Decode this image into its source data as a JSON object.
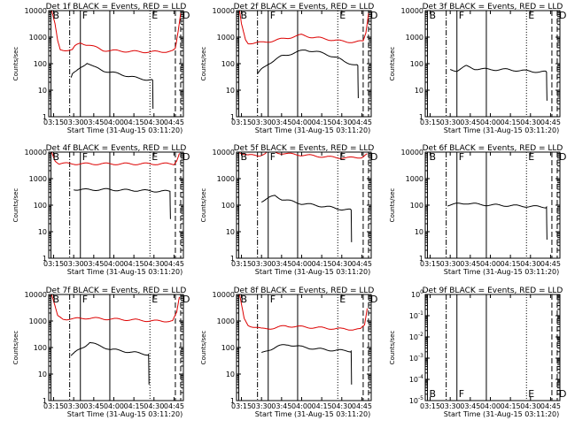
{
  "figure": {
    "xlabel": "Start Time (31-Aug-15 03:11:20)",
    "ylabel": "Counts/sec",
    "x_ticks": [
      "03:15",
      "03:30",
      "03:45",
      "04:00",
      "04:15",
      "04:30",
      "04:45"
    ],
    "x_tick_minutes": [
      195,
      210,
      225,
      240,
      255,
      270,
      285
    ],
    "xlim_minutes": [
      191.33,
      292
    ],
    "y_ticks_default": [
      "1",
      "10",
      "100",
      "1000",
      "10000"
    ],
    "y_ticks_panel9": [
      "10^0",
      "10^-1",
      "10^-2",
      "10^-3",
      "10^-4",
      "10^-5"
    ],
    "markers": [
      {
        "label": "B",
        "minute": 193,
        "style": "solid"
      },
      {
        "label": "",
        "minute": 207,
        "style": "dashdot"
      },
      {
        "label": "F",
        "minute": 215,
        "style": "solid"
      },
      {
        "label": "",
        "minute": 237,
        "style": "solid"
      },
      {
        "label": "E",
        "minute": 267,
        "style": "dotted"
      },
      {
        "label": "",
        "minute": 286,
        "style": "dashed"
      },
      {
        "label": "D",
        "minute": 290,
        "style": "dashed"
      }
    ]
  },
  "chart_data": [
    {
      "type": "line",
      "title": "Det 1f BLACK = Events, RED = LLD",
      "ylim": [
        1,
        10000
      ],
      "log": true,
      "grid": false,
      "series": [
        {
          "name": "Events",
          "color": "#000000",
          "points": [
            [
              208,
              30
            ],
            [
              209,
              40
            ],
            [
              212,
              50
            ],
            [
              215,
              70
            ],
            [
              220,
              110
            ],
            [
              225,
              75
            ],
            [
              232,
              55
            ],
            [
              240,
              45
            ],
            [
              250,
              35
            ],
            [
              258,
              28
            ],
            [
              266,
              25
            ],
            [
              269,
              24
            ],
            [
              269.3,
              2
            ]
          ]
        },
        {
          "name": "LLD",
          "color": "#dd0000",
          "points": [
            [
              193.5,
              10000
            ],
            [
              196,
              3000
            ],
            [
              198,
              700
            ],
            [
              200,
              330
            ],
            [
              207,
              330
            ],
            [
              209,
              330
            ],
            [
              211,
              450
            ],
            [
              215,
              600
            ],
            [
              222,
              500
            ],
            [
              232,
              320
            ],
            [
              245,
              300
            ],
            [
              260,
              280
            ],
            [
              275,
              280
            ],
            [
              284,
              300
            ],
            [
              286,
              350
            ],
            [
              288,
              1500
            ],
            [
              290,
              8000
            ]
          ]
        }
      ]
    },
    {
      "type": "line",
      "title": "Det 2f BLACK = Events, RED = LLD",
      "ylim": [
        1,
        10000
      ],
      "log": true,
      "grid": false,
      "series": [
        {
          "name": "Events",
          "color": "#000000",
          "points": [
            [
              207,
              40
            ],
            [
              210,
              60
            ],
            [
              215,
              100
            ],
            [
              225,
              190
            ],
            [
              235,
              260
            ],
            [
              243,
              330
            ],
            [
              250,
              290
            ],
            [
              258,
              230
            ],
            [
              266,
              170
            ],
            [
              272,
              120
            ],
            [
              280,
              90
            ],
            [
              282,
              85
            ],
            [
              282.3,
              5
            ]
          ]
        },
        {
          "name": "LLD",
          "color": "#dd0000",
          "points": [
            [
              193.5,
              10000
            ],
            [
              195,
              3000
            ],
            [
              198,
              800
            ],
            [
              200,
              600
            ],
            [
              210,
              620
            ],
            [
              220,
              750
            ],
            [
              230,
              950
            ],
            [
              240,
              1200
            ],
            [
              248,
              1000
            ],
            [
              255,
              900
            ],
            [
              262,
              800
            ],
            [
              270,
              700
            ],
            [
              280,
              650
            ],
            [
              286,
              700
            ],
            [
              288,
              1500
            ],
            [
              290,
              8000
            ]
          ]
        }
      ]
    },
    {
      "type": "line",
      "title": "Det 3f BLACK = Events, RED = LLD",
      "ylim": [
        1,
        10000
      ],
      "log": true,
      "grid": false,
      "series": [
        {
          "name": "Events",
          "color": "#000000",
          "points": [
            [
              210,
              60
            ],
            [
              215,
              55
            ],
            [
              222,
              80
            ],
            [
              228,
              65
            ],
            [
              240,
              60
            ],
            [
              252,
              60
            ],
            [
              262,
              55
            ],
            [
              275,
              50
            ],
            [
              282,
              48
            ],
            [
              282.3,
              4
            ]
          ]
        }
      ]
    },
    {
      "type": "line",
      "title": "Det 4f BLACK = Events, RED = LLD",
      "ylim": [
        1,
        10000
      ],
      "log": true,
      "grid": false,
      "series": [
        {
          "name": "Events",
          "color": "#000000",
          "points": [
            [
              210,
              400
            ],
            [
              220,
              380
            ],
            [
              235,
              390
            ],
            [
              245,
              370
            ],
            [
              260,
              360
            ],
            [
              270,
              340
            ],
            [
              282,
              330
            ],
            [
              282.3,
              30
            ]
          ]
        },
        {
          "name": "LLD",
          "color": "#dd0000",
          "points": [
            [
              193.5,
              10000
            ],
            [
              196,
              5000
            ],
            [
              199,
              3700
            ],
            [
              220,
              3600
            ],
            [
              250,
              3600
            ],
            [
              275,
              3600
            ],
            [
              285,
              3600
            ],
            [
              287,
              5000
            ],
            [
              289,
              9000
            ]
          ]
        }
      ]
    },
    {
      "type": "line",
      "title": "Det 5f BLACK = Events, RED = LLD",
      "ylim": [
        1,
        10000
      ],
      "log": true,
      "grid": false,
      "series": [
        {
          "name": "Events",
          "color": "#000000",
          "points": [
            [
              210,
              140
            ],
            [
              215,
              180
            ],
            [
              220,
              230
            ],
            [
              225,
              170
            ],
            [
              232,
              140
            ],
            [
              240,
              115
            ],
            [
              250,
              100
            ],
            [
              260,
              85
            ],
            [
              270,
              70
            ],
            [
              277,
              65
            ],
            [
              277.3,
              4
            ]
          ]
        },
        {
          "name": "LLD",
          "color": "#dd0000",
          "points": [
            [
              193.5,
              10000
            ],
            [
              197,
              8500
            ],
            [
              200,
              7500
            ],
            [
              208,
              7500
            ],
            [
              213,
              9000
            ],
            [
              215,
              11000
            ],
            [
              222,
              9500
            ],
            [
              230,
              8500
            ],
            [
              245,
              7500
            ],
            [
              260,
              6500
            ],
            [
              275,
              6000
            ],
            [
              285,
              6500
            ],
            [
              289,
              8500
            ]
          ]
        }
      ]
    },
    {
      "type": "line",
      "title": "Det 6f BLACK = Events, RED = LLD",
      "ylim": [
        1,
        10000
      ],
      "log": true,
      "grid": false,
      "series": [
        {
          "name": "Events",
          "color": "#000000",
          "points": [
            [
              208,
              100
            ],
            [
              215,
              110
            ],
            [
              222,
              120
            ],
            [
              232,
              105
            ],
            [
              245,
              100
            ],
            [
              258,
              95
            ],
            [
              270,
              90
            ],
            [
              282,
              85
            ],
            [
              282.3,
              5
            ]
          ]
        }
      ]
    },
    {
      "type": "line",
      "title": "Det 7f BLACK = Events, RED = LLD",
      "ylim": [
        1,
        10000
      ],
      "log": true,
      "grid": false,
      "series": [
        {
          "name": "Events",
          "color": "#000000",
          "points": [
            [
              208,
              50
            ],
            [
              212,
              70
            ],
            [
              218,
              110
            ],
            [
              222,
              160
            ],
            [
              228,
              120
            ],
            [
              238,
              85
            ],
            [
              250,
              70
            ],
            [
              260,
              60
            ],
            [
              266,
              55
            ],
            [
              266.3,
              4
            ]
          ]
        },
        {
          "name": "LLD",
          "color": "#dd0000",
          "points": [
            [
              193.5,
              10000
            ],
            [
              198,
              1500
            ],
            [
              202,
              1200
            ],
            [
              210,
              1200
            ],
            [
              220,
              1300
            ],
            [
              235,
              1200
            ],
            [
              255,
              1100
            ],
            [
              270,
              1000
            ],
            [
              284,
              1000
            ],
            [
              287,
              2000
            ],
            [
              289,
              8000
            ]
          ]
        }
      ]
    },
    {
      "type": "line",
      "title": "Det 8f BLACK = Events, RED = LLD",
      "ylim": [
        1,
        10000
      ],
      "log": true,
      "grid": false,
      "series": [
        {
          "name": "Events",
          "color": "#000000",
          "points": [
            [
              210,
              60
            ],
            [
              215,
              80
            ],
            [
              222,
              110
            ],
            [
              230,
              130
            ],
            [
              240,
              105
            ],
            [
              250,
              90
            ],
            [
              262,
              80
            ],
            [
              275,
              75
            ],
            [
              277,
              73
            ],
            [
              277.3,
              4
            ]
          ]
        },
        {
          "name": "LLD",
          "color": "#dd0000",
          "points": [
            [
              193.5,
              10000
            ],
            [
              197,
              1200
            ],
            [
              200,
              700
            ],
            [
              210,
              500
            ],
            [
              220,
              550
            ],
            [
              228,
              650
            ],
            [
              240,
              600
            ],
            [
              255,
              550
            ],
            [
              270,
              500
            ],
            [
              284,
              480
            ],
            [
              287,
              700
            ],
            [
              289,
              3000
            ]
          ]
        }
      ]
    },
    {
      "type": "line",
      "title": "Det 9f BLACK = Events, RED = LLD",
      "ylim": [
        1e-05,
        1
      ],
      "log": true,
      "grid": false,
      "series": []
    }
  ]
}
